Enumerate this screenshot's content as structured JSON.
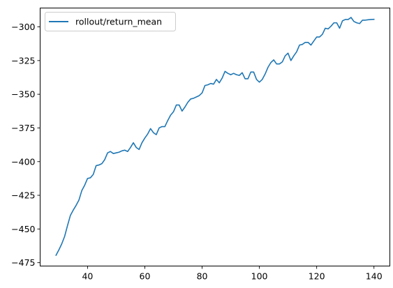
{
  "chart_data": {
    "type": "line",
    "title": "",
    "xlabel": "",
    "ylabel": "",
    "xlim": [
      23.45,
      145.55
    ],
    "ylim": [
      -477.5,
      -286
    ],
    "xticks": [
      40,
      60,
      80,
      100,
      120,
      140
    ],
    "yticks": [
      -300,
      -325,
      -350,
      -375,
      -400,
      -425,
      -450,
      -475
    ],
    "xtick_labels": [
      "40",
      "60",
      "80",
      "100",
      "120",
      "140"
    ],
    "ytick_labels": [
      "−300",
      "−325",
      "−350",
      "−375",
      "−400",
      "−425",
      "−450",
      "−475"
    ],
    "grid": false,
    "legend": {
      "position": "top-left",
      "entries": [
        "rollout/return_mean"
      ]
    },
    "series": [
      {
        "name": "rollout/return_mean",
        "color": "#1f77b4",
        "x": [
          29,
          30,
          31,
          32,
          33,
          34,
          35,
          36,
          37,
          38,
          39,
          40,
          41,
          42,
          43,
          44,
          45,
          46,
          47,
          48,
          49,
          50,
          51,
          52,
          53,
          54,
          55,
          56,
          57,
          58,
          59,
          60,
          61,
          62,
          63,
          64,
          65,
          66,
          67,
          68,
          69,
          70,
          71,
          72,
          73,
          74,
          75,
          76,
          77,
          78,
          79,
          80,
          81,
          82,
          83,
          84,
          85,
          86,
          87,
          88,
          89,
          90,
          91,
          92,
          93,
          94,
          95,
          96,
          97,
          98,
          99,
          100,
          101,
          102,
          103,
          104,
          105,
          106,
          107,
          108,
          109,
          110,
          111,
          112,
          113,
          114,
          115,
          116,
          117,
          118,
          119,
          120,
          121,
          122,
          123,
          124,
          125,
          126,
          127,
          128,
          129,
          130,
          131,
          132,
          133,
          134,
          135,
          136,
          137,
          138,
          139,
          140
        ],
        "y": [
          -469.5,
          -465.5,
          -461,
          -455.5,
          -447.5,
          -440,
          -436,
          -432.5,
          -428.5,
          -421.5,
          -417.5,
          -412.5,
          -412,
          -409.5,
          -403,
          -402.5,
          -401.5,
          -398.5,
          -393.5,
          -392.5,
          -394,
          -393.5,
          -393,
          -392,
          -391.5,
          -392.5,
          -389.5,
          -386,
          -389.5,
          -391,
          -386,
          -382.5,
          -379.5,
          -375.5,
          -378.5,
          -380,
          -375,
          -374,
          -374,
          -369.5,
          -365.5,
          -363,
          -358,
          -358,
          -362.5,
          -359.5,
          -356,
          -353.5,
          -353,
          -352,
          -351,
          -349,
          -343.5,
          -343,
          -342,
          -342.5,
          -339,
          -341.5,
          -338,
          -333,
          -334.5,
          -335.5,
          -334.5,
          -335.5,
          -336,
          -334,
          -338.5,
          -338.5,
          -333.5,
          -333.5,
          -339,
          -341,
          -339,
          -335,
          -330,
          -326.5,
          -324.5,
          -327.5,
          -327.5,
          -326,
          -321.5,
          -319.5,
          -325,
          -321.5,
          -318.5,
          -313.5,
          -313,
          -311.5,
          -311.5,
          -313.5,
          -310.5,
          -307.5,
          -307.5,
          -305.5,
          -301,
          -301.5,
          -299.5,
          -297,
          -297,
          -301,
          -295.5,
          -294.5,
          -294.5,
          -293,
          -296,
          -297,
          -297.5,
          -295,
          -295,
          -294.7,
          -294.5,
          -294.4
        ]
      }
    ]
  }
}
